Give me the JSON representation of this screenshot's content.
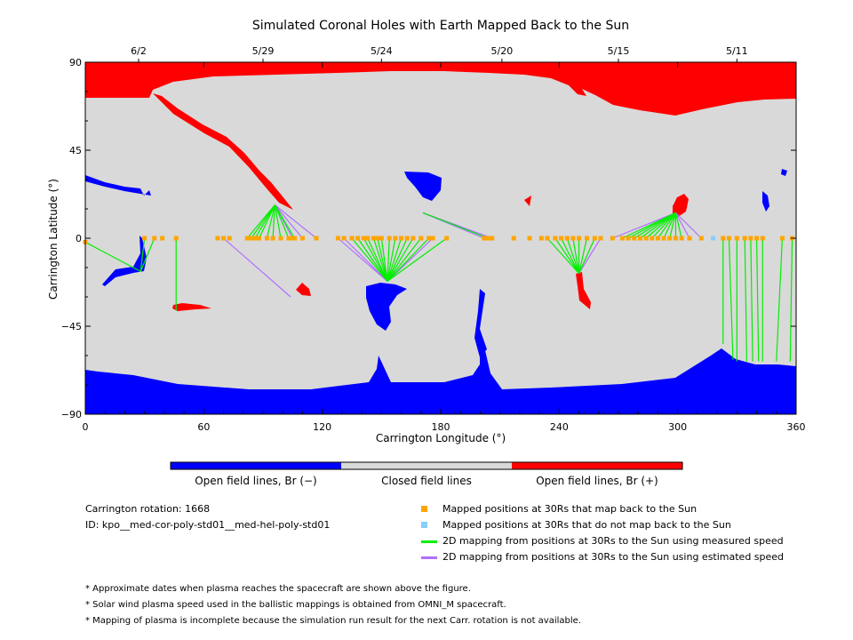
{
  "chart_data": {
    "type": "scatter",
    "title": "Simulated Coronal Holes with Earth Mapped Back to the Sun",
    "xlabel": "Carrington Longitude (°)",
    "ylabel": "Carrington Latitude (°)",
    "xlim": [
      0,
      360
    ],
    "ylim": [
      -90,
      90
    ],
    "xticks": [
      0,
      60,
      120,
      180,
      240,
      300,
      360
    ],
    "yticks": [
      -90,
      -45,
      0,
      45,
      90
    ],
    "top_date_ticks": [
      {
        "lon": 27,
        "label": "6/2"
      },
      {
        "lon": 90,
        "label": "5/29"
      },
      {
        "lon": 150,
        "label": "5/24"
      },
      {
        "lon": 211,
        "label": "5/20"
      },
      {
        "lon": 270,
        "label": "5/15"
      },
      {
        "lon": 330,
        "label": "5/11"
      }
    ],
    "colors": {
      "open_negative": "#0000ff",
      "closed": "#d9d9d9",
      "open_positive": "#ff0000",
      "mapped_point": "#ffa500",
      "unmapped_point": "#87cefa",
      "measured_line": "#00ee00",
      "estimated_line": "#b070ff"
    },
    "colorbar": {
      "segments": [
        {
          "label": "Open field lines, Br (−)",
          "color": "#0000ff"
        },
        {
          "label": "Closed field lines",
          "color": "#d9d9d9"
        },
        {
          "label": "Open field lines, Br (+)",
          "color": "#ff0000"
        }
      ]
    },
    "mappings": [
      {
        "target": [
          28,
          -17
        ],
        "speed": "measured",
        "points": [
          [
            0,
            -2
          ],
          [
            30,
            0
          ],
          [
            35,
            0
          ]
        ]
      },
      {
        "target": [
          46,
          -37
        ],
        "speed": "measured",
        "points": [
          [
            46,
            0
          ]
        ]
      },
      {
        "target": [
          96,
          17
        ],
        "speed": "measured",
        "points": [
          [
            82,
            0
          ],
          [
            84,
            0
          ],
          [
            86,
            0
          ],
          [
            88,
            0
          ],
          [
            92,
            0
          ],
          [
            95,
            0
          ],
          [
            99,
            0
          ],
          [
            103,
            0
          ],
          [
            106,
            0
          ]
        ]
      },
      {
        "target": [
          96,
          17
        ],
        "speed": "estimated",
        "points": [
          [
            105,
            0
          ],
          [
            110,
            0
          ],
          [
            117,
            0
          ]
        ]
      },
      {
        "target": [
          104,
          -30
        ],
        "speed": "estimated",
        "points": [
          [
            70,
            0
          ]
        ]
      },
      {
        "target": [
          153,
          -22
        ],
        "speed": "measured",
        "points": [
          [
            135,
            0
          ],
          [
            138,
            0
          ],
          [
            141,
            0
          ],
          [
            143,
            0
          ],
          [
            146,
            0
          ],
          [
            148,
            0
          ],
          [
            150,
            0
          ],
          [
            154,
            0
          ],
          [
            157,
            0
          ],
          [
            160,
            0
          ],
          [
            163,
            0
          ],
          [
            166,
            0
          ],
          [
            170,
            0
          ],
          [
            174,
            0
          ],
          [
            183,
            0
          ]
        ]
      },
      {
        "target": [
          153,
          -22
        ],
        "speed": "estimated",
        "points": [
          [
            128,
            0
          ],
          [
            131,
            0
          ],
          [
            176,
            0
          ]
        ]
      },
      {
        "target": [
          171,
          13
        ],
        "speed": "measured",
        "points": [
          [
            204,
            0
          ]
        ]
      },
      {
        "target": [
          171,
          13
        ],
        "speed": "estimated",
        "points": [
          [
            202,
            0
          ],
          [
            206,
            0
          ]
        ]
      },
      {
        "target": [
          250,
          -18
        ],
        "speed": "measured",
        "points": [
          [
            234,
            0
          ],
          [
            238,
            0
          ],
          [
            241,
            0
          ],
          [
            244,
            0
          ],
          [
            247,
            0
          ],
          [
            250,
            0
          ],
          [
            254,
            0
          ],
          [
            258,
            0
          ]
        ]
      },
      {
        "target": [
          250,
          -18
        ],
        "speed": "estimated",
        "points": [
          [
            261,
            0
          ]
        ]
      },
      {
        "target": [
          299,
          13
        ],
        "speed": "measured",
        "points": [
          [
            272,
            0
          ],
          [
            275,
            0
          ],
          [
            278,
            0
          ],
          [
            281,
            0
          ],
          [
            284,
            0
          ],
          [
            287,
            0
          ],
          [
            290,
            0
          ],
          [
            293,
            0
          ],
          [
            296,
            0
          ],
          [
            299,
            0
          ],
          [
            302,
            0
          ]
        ]
      },
      {
        "target": [
          299,
          13
        ],
        "speed": "estimated",
        "points": [
          [
            267,
            0
          ],
          [
            306,
            0
          ],
          [
            312,
            0
          ]
        ]
      },
      {
        "target": [
          323,
          -54
        ],
        "speed": "measured",
        "points": [
          [
            323,
            0
          ]
        ]
      },
      {
        "target": [
          328,
          -62
        ],
        "speed": "measured",
        "points": [
          [
            326,
            0
          ]
        ]
      },
      {
        "target": [
          330,
          -63
        ],
        "speed": "measured",
        "points": [
          [
            330,
            0
          ]
        ]
      },
      {
        "target": [
          335,
          -63
        ],
        "speed": "measured",
        "points": [
          [
            334,
            0
          ]
        ]
      },
      {
        "target": [
          338,
          -63
        ],
        "speed": "measured",
        "points": [
          [
            337,
            0
          ]
        ]
      },
      {
        "target": [
          341,
          -63
        ],
        "speed": "measured",
        "points": [
          [
            340,
            0
          ]
        ]
      },
      {
        "target": [
          343,
          -63
        ],
        "speed": "measured",
        "points": [
          [
            343,
            0
          ]
        ]
      },
      {
        "target": [
          350,
          -63
        ],
        "speed": "measured",
        "points": [
          [
            353,
            0
          ]
        ]
      },
      {
        "target": [
          357,
          -63
        ],
        "speed": "measured",
        "points": [
          [
            358,
            0
          ]
        ]
      }
    ],
    "unmapped_points": [
      [
        318,
        0
      ]
    ],
    "lone_mapped_points": [
      [
        39,
        0
      ],
      [
        67,
        0
      ],
      [
        73,
        0
      ],
      [
        217,
        0
      ],
      [
        225,
        0
      ],
      [
        231,
        0
      ]
    ]
  },
  "info": {
    "rotation": "Carrington rotation: 1668",
    "id": "ID: kpo__med-cor-poly-std01__med-hel-poly-std01"
  },
  "legend": [
    {
      "kind": "square",
      "color": "#ffa500",
      "label": "Mapped positions at 30Rs that map back to the Sun"
    },
    {
      "kind": "square",
      "color": "#87cefa",
      "label": "Mapped positions at 30Rs that do not map back to the Sun"
    },
    {
      "kind": "line",
      "color": "#00ee00",
      "label": "2D mapping from positions at 30Rs to the Sun using measured speed"
    },
    {
      "kind": "line",
      "color": "#b070ff",
      "label": "2D mapping from positions at 30Rs to the Sun using estimated speed"
    }
  ],
  "notes": [
    "* Approximate dates when plasma reaches the spacecraft are shown above the figure.",
    "* Solar wind plasma speed used in the ballistic mappings is obtained from OMNI_M spacecraft.",
    "* Mapping of plasma is incomplete because the simulation run result for the next Carr. rotation is not available."
  ]
}
